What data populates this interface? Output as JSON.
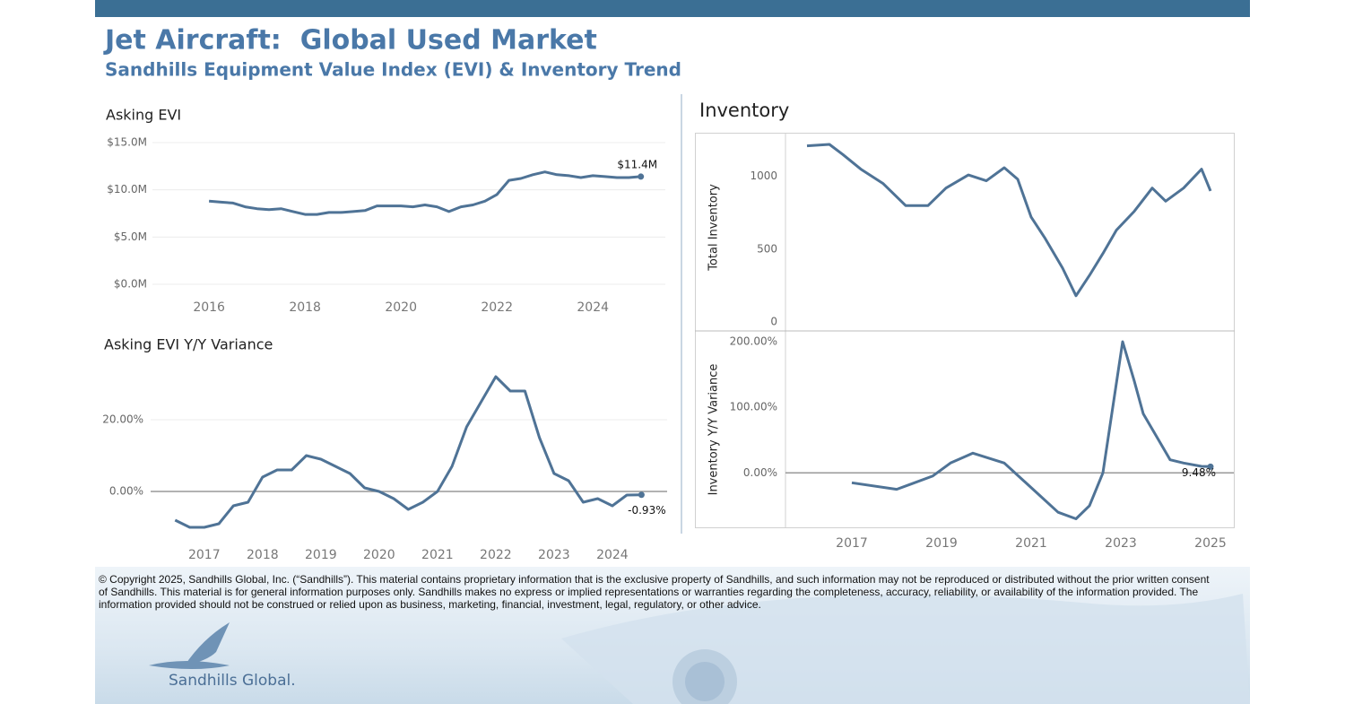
{
  "header": {
    "title": "Jet Aircraft:  Global Used Market",
    "subtitle": "Sandhills Equipment Value Index (EVI) & Inventory Trend"
  },
  "chart_data": [
    {
      "type": "line",
      "title": "Asking EVI",
      "color": "#4f7396",
      "grid": true,
      "x": [
        2016,
        2016.25,
        2016.5,
        2016.75,
        2017,
        2017.25,
        2017.5,
        2017.75,
        2018,
        2018.25,
        2018.5,
        2018.75,
        2019,
        2019.25,
        2019.5,
        2019.75,
        2020,
        2020.25,
        2020.5,
        2020.75,
        2021,
        2021.25,
        2021.5,
        2021.75,
        2022,
        2022.25,
        2022.5,
        2022.75,
        2023,
        2023.25,
        2023.5,
        2023.75,
        2024,
        2024.25,
        2024.5,
        2024.75,
        2025
      ],
      "values": [
        8800000,
        8700000,
        8600000,
        8200000,
        8000000,
        7900000,
        8000000,
        7700000,
        7400000,
        7400000,
        7600000,
        7600000,
        7700000,
        7800000,
        8300000,
        8300000,
        8300000,
        8200000,
        8400000,
        8200000,
        7700000,
        8200000,
        8400000,
        8800000,
        9500000,
        11000000,
        11200000,
        11600000,
        11900000,
        11600000,
        11500000,
        11300000,
        11500000,
        11400000,
        11300000,
        11300000,
        11400000
      ],
      "value_labels": [
        null,
        null,
        null,
        null,
        null,
        null,
        null,
        null,
        null,
        null,
        null,
        null,
        null,
        null,
        null,
        null,
        null,
        null,
        null,
        null,
        null,
        null,
        null,
        null,
        null,
        null,
        null,
        null,
        null,
        null,
        null,
        null,
        null,
        null,
        null,
        null,
        "$11.4M"
      ],
      "xlim": [
        2014.82,
        2025.51
      ],
      "xticks": [
        2016,
        2018,
        2020,
        2022,
        2024
      ],
      "ylim": [
        0,
        15000000
      ],
      "yticks": [
        {
          "value": 0,
          "label": "$0.0M"
        },
        {
          "value": 5000000,
          "label": "$5.0M"
        },
        {
          "value": 10000000,
          "label": "$10.0M"
        },
        {
          "value": 15000000,
          "label": "$15.0M"
        }
      ]
    },
    {
      "type": "line",
      "title": "Asking EVI Y/Y Variance",
      "color": "#4f7396",
      "grid": true,
      "zero_line": true,
      "x": [
        2016.5,
        2016.75,
        2017,
        2017.25,
        2017.5,
        2017.75,
        2018,
        2018.25,
        2018.5,
        2018.75,
        2019,
        2019.25,
        2019.5,
        2019.75,
        2020,
        2020.25,
        2020.5,
        2020.75,
        2021,
        2021.25,
        2021.5,
        2021.75,
        2022,
        2022.25,
        2022.5,
        2022.75,
        2023,
        2023.25,
        2023.5,
        2023.75,
        2024,
        2024.25,
        2024.5
      ],
      "values": [
        -8,
        -10,
        -10,
        -9,
        -4,
        -3,
        4,
        6,
        6,
        10,
        9,
        7,
        5,
        1,
        0,
        -2,
        -5,
        -3,
        0,
        7,
        18,
        25,
        32,
        28,
        28,
        15,
        5,
        3,
        -3,
        -2,
        -4,
        -1,
        -0.93
      ],
      "value_labels": [
        null,
        null,
        null,
        null,
        null,
        null,
        null,
        null,
        null,
        null,
        null,
        null,
        null,
        null,
        null,
        null,
        null,
        null,
        null,
        null,
        null,
        null,
        null,
        null,
        null,
        null,
        null,
        null,
        null,
        null,
        null,
        null,
        "-0.93%"
      ],
      "xlim": [
        2016.08,
        2024.94
      ],
      "xticks": [
        2017,
        2018,
        2019,
        2020,
        2021,
        2022,
        2023,
        2024
      ],
      "ylim": [
        -13,
        35
      ],
      "yticks": [
        {
          "value": 0,
          "label": "0.00%"
        },
        {
          "value": 20,
          "label": "20.00%"
        }
      ]
    },
    {
      "type": "line",
      "title": "Inventory",
      "ylabel": "Total Inventory",
      "color": "#4f7396",
      "grid": false,
      "x": [
        2016,
        2016.5,
        2016.8,
        2017.2,
        2017.7,
        2018.2,
        2018.7,
        2019.1,
        2019.6,
        2020,
        2020.4,
        2020.7,
        2021,
        2021.3,
        2021.7,
        2022,
        2022.3,
        2022.6,
        2022.9,
        2023.3,
        2023.7,
        2024,
        2024.4,
        2024.8,
        2025
      ],
      "values": [
        1210,
        1220,
        1150,
        1050,
        950,
        800,
        800,
        920,
        1010,
        970,
        1060,
        980,
        720,
        580,
        370,
        180,
        320,
        470,
        630,
        760,
        920,
        830,
        920,
        1050,
        900
      ],
      "xlim": [
        2015.52,
        2025.52
      ],
      "ylim": [
        0,
        1300
      ],
      "yticks": [
        0,
        500,
        1000
      ]
    },
    {
      "type": "line",
      "ylabel": "Inventory  Y/Y Variance",
      "color": "#4f7396",
      "grid": false,
      "zero_line": true,
      "x": [
        2017,
        2018,
        2018.8,
        2019.2,
        2019.7,
        2020.4,
        2020.8,
        2021.2,
        2021.6,
        2022,
        2022.3,
        2022.6,
        2023.04,
        2023.3,
        2023.5,
        2023.8,
        2024.1,
        2024.4,
        2024.8,
        2025
      ],
      "values": [
        -15,
        -25,
        -5,
        15,
        30,
        15,
        -10,
        -35,
        -60,
        -70,
        -50,
        0,
        200,
        140,
        90,
        55,
        20,
        15,
        10,
        9.48
      ],
      "value_labels": [
        null,
        null,
        null,
        null,
        null,
        null,
        null,
        null,
        null,
        null,
        null,
        null,
        null,
        null,
        null,
        null,
        null,
        null,
        null,
        "9.48%"
      ],
      "xlim": [
        2015.52,
        2025.52
      ],
      "xticks": [
        2017,
        2019,
        2021,
        2023,
        2025
      ],
      "ylim": [
        -83,
        215
      ],
      "yticks": [
        {
          "value": 0,
          "label": "0.00%"
        },
        {
          "value": 100,
          "label": "100.00%"
        },
        {
          "value": 200,
          "label": "200.00%"
        }
      ]
    }
  ],
  "footer": {
    "copyright": "© Copyright 2025, Sandhills Global, Inc. (“Sandhills”). This material contains proprietary information that is the exclusive property of Sandhills, and such information may not be reproduced or distributed without the prior written consent of Sandhills. This material is for general information purposes only. Sandhills makes no express or implied representations or warranties regarding the completeness, accuracy, reliability, or availability of the information provided. The information provided should not be construed or relied upon as business, marketing, financial, investment, legal, regulatory, or other advice.",
    "logo": "Sandhills Global."
  }
}
